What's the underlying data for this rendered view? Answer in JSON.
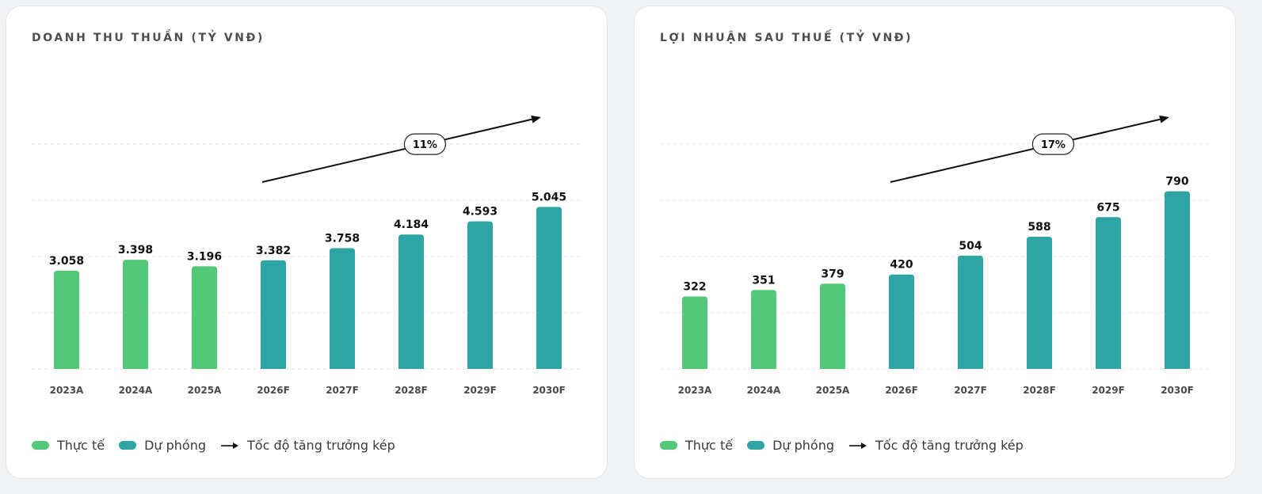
{
  "colors": {
    "actual": "#52c878",
    "forecast": "#2fa4a5",
    "grid": "#e2e4e6",
    "text": "#111111",
    "axis_text": "#4a4a4a"
  },
  "legend": {
    "actual_label": "Thực tế",
    "forecast_label": "Dự phóng",
    "cagr_label": "Tốc độ tăng trưởng kép"
  },
  "chart_data": [
    {
      "type": "bar",
      "title": "DOANH THU THUẦN (TỶ VNĐ)",
      "categories": [
        "2023A",
        "2024A",
        "2025A",
        "2026F",
        "2027F",
        "2028F",
        "2029F",
        "2030F"
      ],
      "values": [
        3058,
        3398,
        3196,
        3382,
        3758,
        4184,
        4593,
        5045
      ],
      "value_labels": [
        "3.058",
        "3.398",
        "3.196",
        "3.382",
        "3.758",
        "4.184",
        "4.593",
        "5.045"
      ],
      "kinds": [
        "actual",
        "actual",
        "actual",
        "forecast",
        "forecast",
        "forecast",
        "forecast",
        "forecast"
      ],
      "ylim": [
        0,
        7000
      ],
      "grid": true,
      "growth_label": "11%",
      "arrow_from_category": "2026F",
      "arrow_to_category": "2030F"
    },
    {
      "type": "bar",
      "title": "LỢI NHUẬN SAU THUẾ (TỶ VNĐ)",
      "categories": [
        "2023A",
        "2024A",
        "2025A",
        "2026F",
        "2027F",
        "2028F",
        "2029F",
        "2030F"
      ],
      "values": [
        322,
        351,
        379,
        420,
        504,
        588,
        675,
        790
      ],
      "value_labels": [
        "322",
        "351",
        "379",
        "420",
        "504",
        "588",
        "675",
        "790"
      ],
      "kinds": [
        "actual",
        "actual",
        "actual",
        "forecast",
        "forecast",
        "forecast",
        "forecast",
        "forecast"
      ],
      "ylim": [
        0,
        1000
      ],
      "grid": true,
      "growth_label": "17%",
      "arrow_from_category": "2026F",
      "arrow_to_category": "2030F"
    }
  ]
}
